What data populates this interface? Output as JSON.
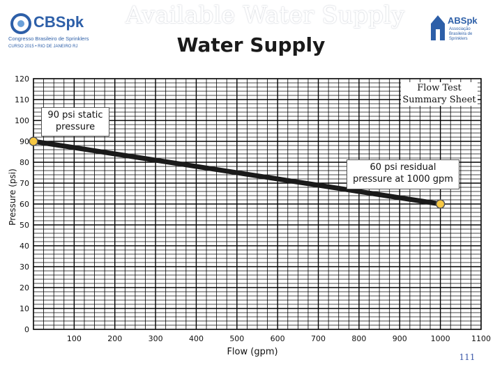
{
  "header": {
    "logo_left_text": "CBSpk",
    "logo_left_sub": "Congresso Brasileiro de Sprinklers",
    "logo_left_sub2": "CURSO 2015 • RIO DE JANEIRO RJ",
    "logo_right_text": "ABSpk",
    "logo_right_sub1": "Associação",
    "logo_right_sub2": "Brasileira de",
    "logo_right_sub3": "Sprinklers",
    "background_title": "Available Water Supply",
    "title": "Water Supply"
  },
  "summary_label": "Flow Test Summary Sheet",
  "page_number": "111",
  "colors": {
    "point_fill": "#f7c843",
    "point_stroke": "#555555",
    "line": "#1a1a1a",
    "grid": "#000000",
    "accent_blue": "#2d5fa8"
  },
  "chart_data": {
    "type": "line",
    "xlabel": "Flow (gpm)",
    "ylabel": "Pressure (psi)",
    "xlim": [
      0,
      1100
    ],
    "ylim": [
      0,
      120
    ],
    "x_ticks": [
      100,
      200,
      300,
      400,
      500,
      600,
      700,
      800,
      900,
      1000,
      1100
    ],
    "y_ticks": [
      0,
      10,
      20,
      30,
      40,
      50,
      60,
      70,
      80,
      90,
      100,
      110,
      120
    ],
    "grid": true,
    "series": [
      {
        "x": [
          0,
          1000
        ],
        "y": [
          90,
          60
        ]
      }
    ],
    "annotations": [
      {
        "text": "90 psi static pressure",
        "x": 0,
        "y": 90
      },
      {
        "text": "60 psi residual pressure at 1000 gpm",
        "x": 1000,
        "y": 60
      }
    ]
  }
}
